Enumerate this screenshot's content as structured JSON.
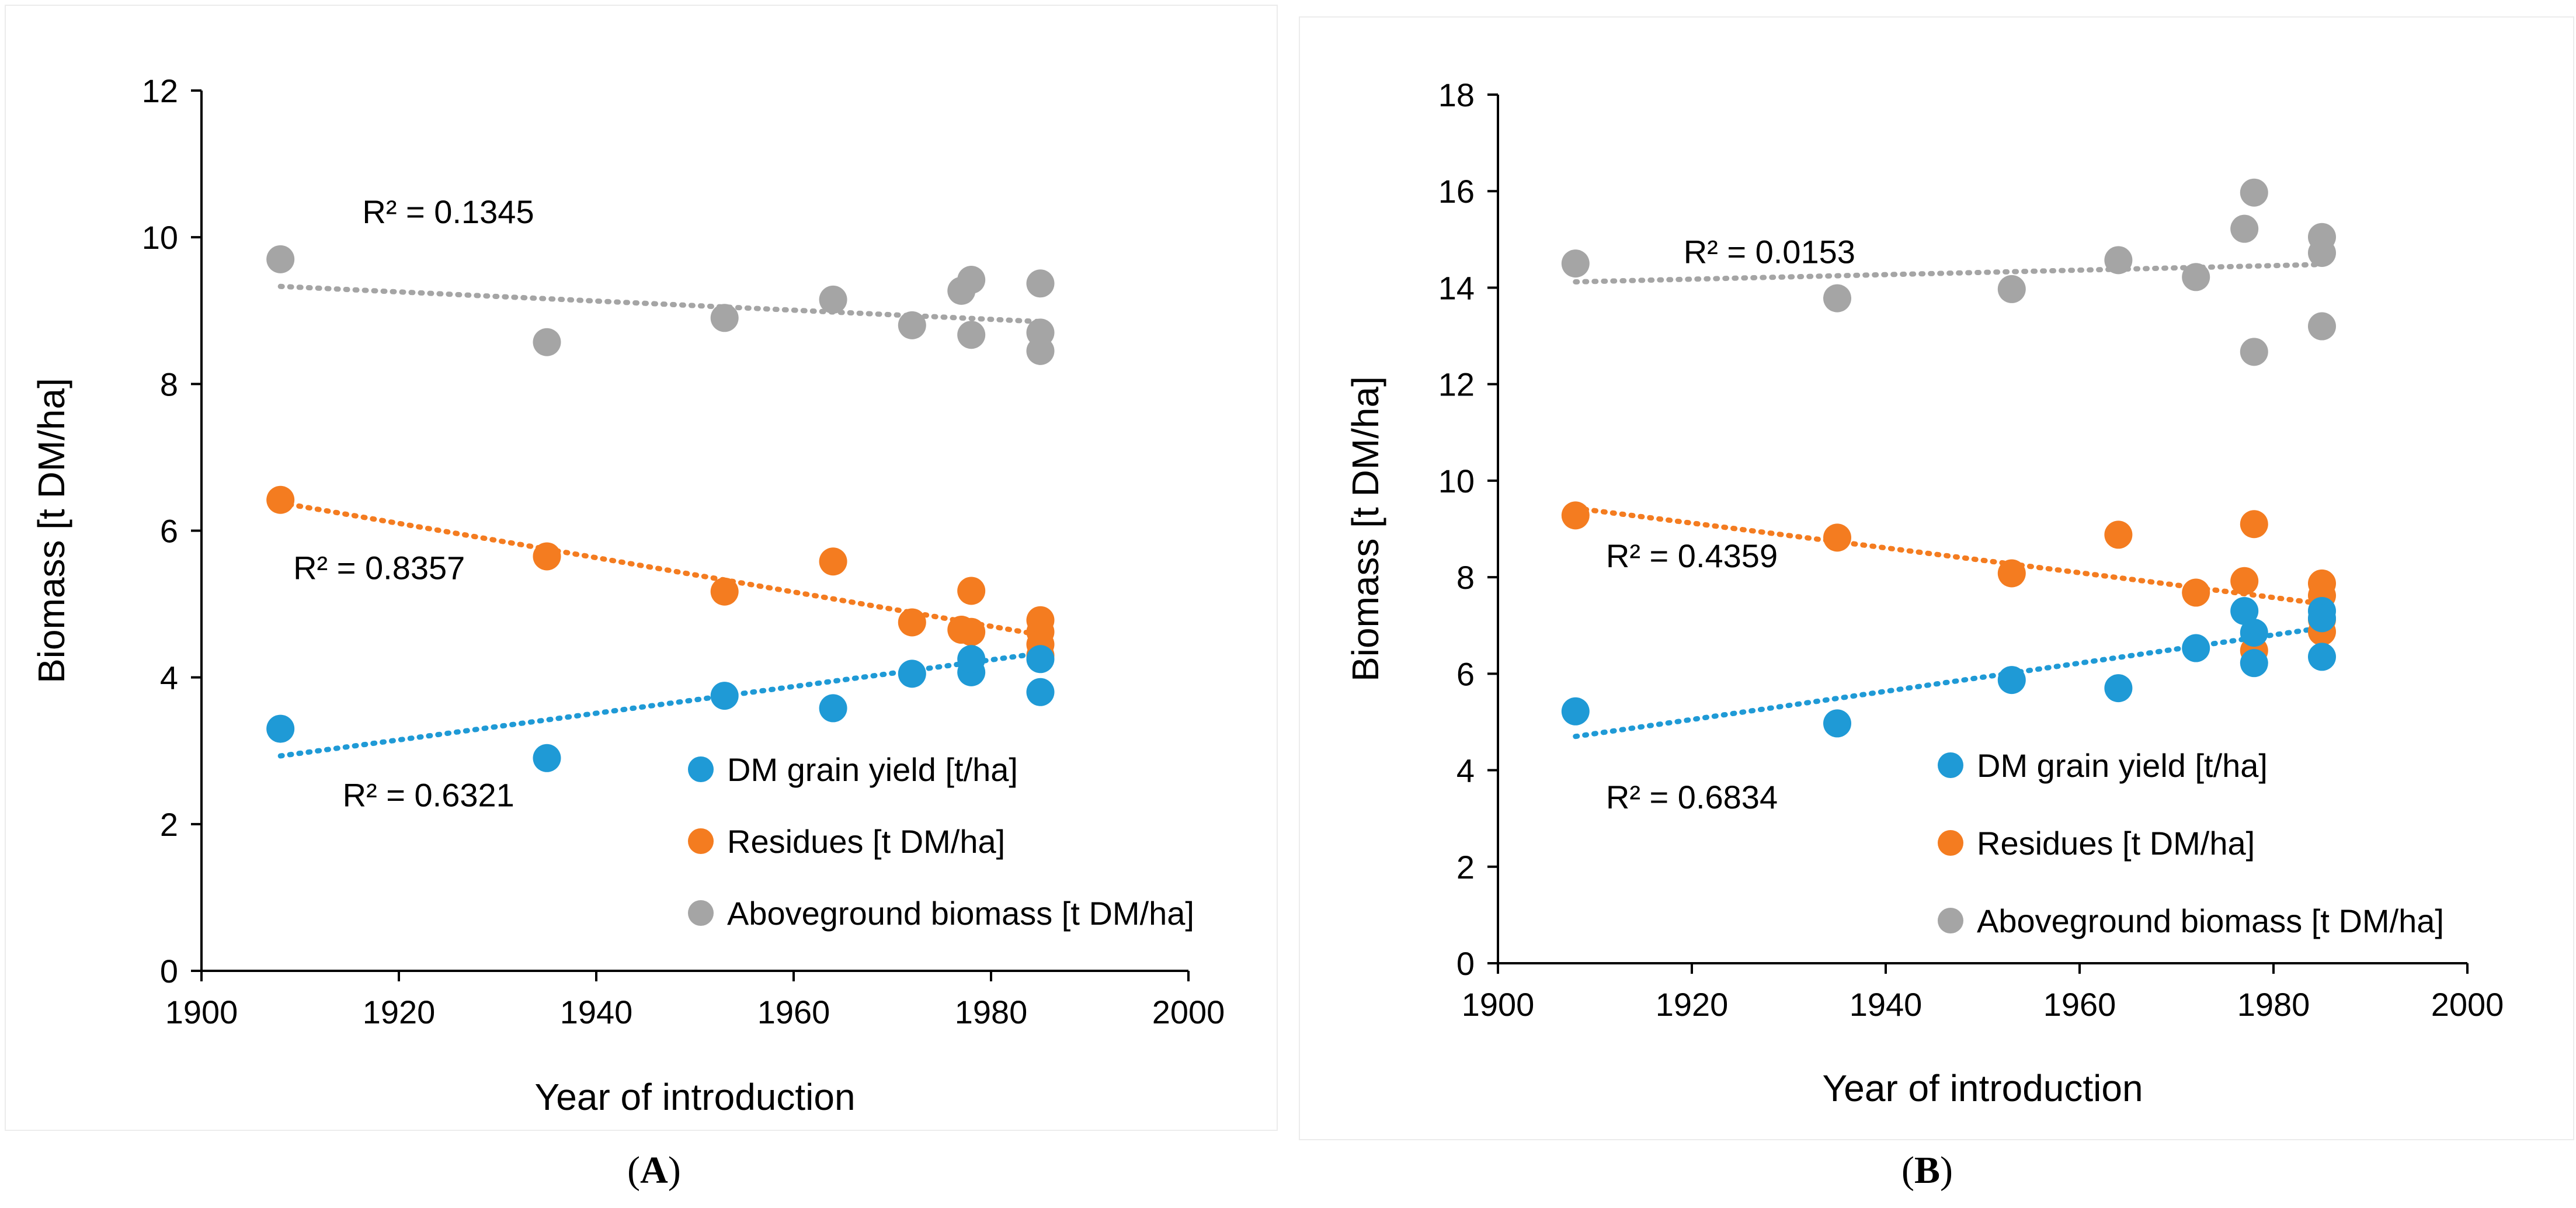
{
  "chart_data": [
    {
      "panel": "A",
      "type": "scatter",
      "xlabel": "Year of introduction",
      "ylabel": "Biomass [t DM/ha]",
      "xlim": [
        1900,
        2000
      ],
      "ylim": [
        0,
        12
      ],
      "xticks": [
        1900,
        1920,
        1940,
        1960,
        1980,
        2000
      ],
      "yticks": [
        0,
        2,
        4,
        6,
        8,
        10,
        12
      ],
      "legend_position": "bottom-right",
      "series": [
        {
          "name": "DM grain yield [t/ha]",
          "color": "#1f9ad6",
          "x": [
            1908,
            1935,
            1953,
            1964,
            1972,
            1978,
            1978,
            1985,
            1985
          ],
          "y": [
            3.3,
            2.9,
            3.75,
            3.58,
            4.05,
            4.07,
            4.25,
            3.8,
            4.25
          ],
          "trend": {
            "x": [
              1908,
              1985
            ],
            "y": [
              2.93,
              4.33
            ]
          },
          "r2": "R² = 0.6321",
          "r2_pos": {
            "x": 1923,
            "y": 2.4
          }
        },
        {
          "name": "Residues [t DM/ha]",
          "color": "#f47c20",
          "x": [
            1908,
            1935,
            1953,
            1964,
            1972,
            1977,
            1978,
            1978,
            1985,
            1985,
            1985,
            1985
          ],
          "y": [
            6.42,
            5.65,
            5.17,
            5.58,
            4.75,
            4.65,
            4.62,
            5.18,
            4.78,
            4.62,
            4.45,
            4.3
          ],
          "trend": {
            "x": [
              1908,
              1985
            ],
            "y": [
              6.38,
              4.58
            ]
          },
          "r2": "R² = 0.8357",
          "r2_pos": {
            "x": 1918,
            "y": 5.5
          }
        },
        {
          "name": "Aboveground biomass [t DM/ha]",
          "color": "#a5a5a5",
          "x": [
            1908,
            1935,
            1953,
            1964,
            1972,
            1977,
            1978,
            1978,
            1985,
            1985,
            1985
          ],
          "y": [
            9.7,
            8.57,
            8.9,
            9.15,
            8.8,
            9.27,
            9.42,
            8.67,
            9.37,
            8.7,
            8.45
          ],
          "trend": {
            "x": [
              1908,
              1985
            ],
            "y": [
              9.33,
              8.85
            ]
          },
          "r2": "R² = 0.1345",
          "r2_pos": {
            "x": 1925,
            "y": 10.35
          }
        }
      ]
    },
    {
      "panel": "B",
      "type": "scatter",
      "xlabel": "Year of introduction",
      "ylabel": "Biomass [t DM/ha]",
      "xlim": [
        1900,
        2000
      ],
      "ylim": [
        0,
        18
      ],
      "xticks": [
        1900,
        1920,
        1940,
        1960,
        1980,
        2000
      ],
      "yticks": [
        0,
        2,
        4,
        6,
        8,
        10,
        12,
        14,
        16,
        18
      ],
      "legend_position": "bottom-right",
      "series": [
        {
          "name": "DM grain yield [t/ha]",
          "color": "#1f9ad6",
          "x": [
            1908,
            1935,
            1953,
            1964,
            1972,
            1977,
            1978,
            1978,
            1985,
            1985,
            1985
          ],
          "y": [
            5.22,
            4.97,
            5.87,
            5.7,
            6.53,
            7.3,
            6.85,
            6.22,
            6.35,
            7.3,
            7.15
          ],
          "trend": {
            "x": [
              1908,
              1985
            ],
            "y": [
              4.7,
              6.95
            ]
          },
          "r2": "R² = 0.6834",
          "r2_pos": {
            "x": 1920,
            "y": 3.45
          }
        },
        {
          "name": "Residues [t DM/ha]",
          "color": "#f47c20",
          "x": [
            1908,
            1935,
            1953,
            1964,
            1972,
            1977,
            1978,
            1978,
            1985,
            1985,
            1985,
            1985
          ],
          "y": [
            9.28,
            8.82,
            8.08,
            8.88,
            7.68,
            7.92,
            9.1,
            6.48,
            7.87,
            7.62,
            7.12,
            6.87
          ],
          "trend": {
            "x": [
              1908,
              1985
            ],
            "y": [
              9.43,
              7.45
            ]
          },
          "r2": "R² = 0.4359",
          "r2_pos": {
            "x": 1920,
            "y": 8.45
          }
        },
        {
          "name": "Aboveground biomass [t DM/ha]",
          "color": "#a5a5a5",
          "x": [
            1908,
            1935,
            1953,
            1964,
            1972,
            1977,
            1978,
            1978,
            1985,
            1985,
            1985
          ],
          "y": [
            14.5,
            13.78,
            13.97,
            14.57,
            14.22,
            15.22,
            15.97,
            12.67,
            15.05,
            14.72,
            13.2
          ],
          "trend": {
            "x": [
              1908,
              1985
            ],
            "y": [
              14.12,
              14.48
            ]
          },
          "r2": "R² = 0.0153",
          "r2_pos": {
            "x": 1928,
            "y": 14.75
          }
        }
      ]
    }
  ],
  "captions": {
    "a_letter": "A",
    "b_letter": "B",
    "open": "(",
    "close": ")"
  }
}
